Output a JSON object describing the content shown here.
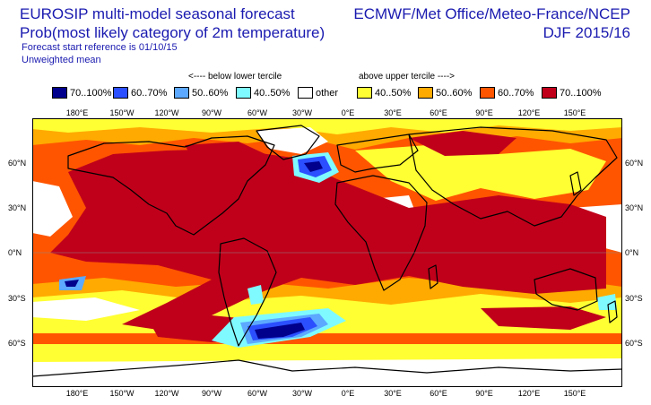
{
  "header": {
    "title": "EUROSIP multi-model seasonal forecast",
    "subtitle": "Prob(most likely category of 2m temperature)",
    "start_ref": "Forecast start reference is 01/10/15",
    "weighting": "Unweighted mean",
    "centres": "ECMWF/Met Office/Meteo-France/NCEP",
    "season": "DJF 2015/16"
  },
  "legend": {
    "below_label": "<---- below lower tercile",
    "above_label": "above upper tercile ---->",
    "items": [
      {
        "label": "70..100%",
        "color": "#00008c"
      },
      {
        "label": "60..70%",
        "color": "#2b4fff"
      },
      {
        "label": "50..60%",
        "color": "#5ca9ff"
      },
      {
        "label": "40..50%",
        "color": "#7ffaff"
      },
      {
        "label": "other",
        "color": "#ffffff"
      },
      {
        "label": "40..50%",
        "color": "#ffff33"
      },
      {
        "label": "50..60%",
        "color": "#ffaa00"
      },
      {
        "label": "60..70%",
        "color": "#ff5500"
      },
      {
        "label": "70..100%",
        "color": "#c0001a"
      }
    ]
  },
  "axes": {
    "lon_labels": [
      "180°E",
      "150°W",
      "120°W",
      "90°W",
      "60°W",
      "30°W",
      "0°E",
      "30°E",
      "60°E",
      "90°E",
      "120°E",
      "150°E"
    ],
    "lat_labels_left": [
      "60°N",
      "30°N",
      "0°N",
      "30°S",
      "60°S"
    ],
    "lat_labels_right": [
      "60°N",
      "30°N",
      "0°N",
      "30°S",
      "60°S"
    ]
  }
}
